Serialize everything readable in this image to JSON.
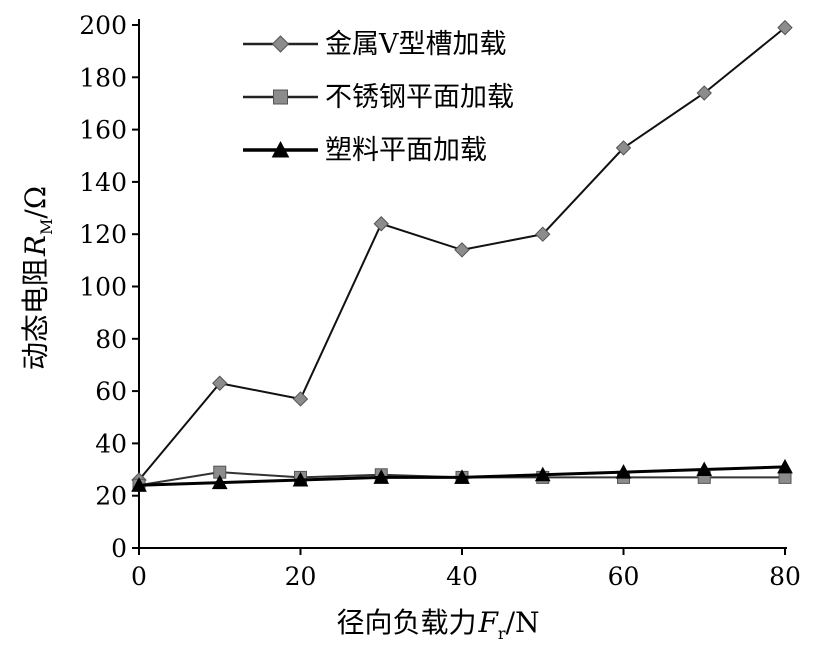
{
  "chart_data": {
    "type": "line",
    "title": "",
    "xlabel": "径向负载力",
    "xlabel_symbol": "F",
    "xlabel_sub": "r",
    "xlabel_unit": "/N",
    "ylabel": "动态电阻",
    "ylabel_symbol": "R",
    "ylabel_sub": "M",
    "ylabel_unit": "/Ω",
    "xlim": [
      0,
      80
    ],
    "ylim": [
      0,
      200
    ],
    "xticks": [
      0,
      20,
      40,
      60,
      80
    ],
    "yticks": [
      0,
      20,
      40,
      60,
      80,
      100,
      120,
      140,
      160,
      180,
      200
    ],
    "grid": false,
    "legend_position": "top-right",
    "x": [
      0,
      10,
      20,
      30,
      40,
      50,
      60,
      70,
      80
    ],
    "series": [
      {
        "name": "金属V型槽加载",
        "marker": "diamond",
        "color": "#8c8c8c",
        "values": [
          26,
          63,
          57,
          124,
          114,
          120,
          153,
          174,
          199
        ]
      },
      {
        "name": "不锈钢平面加载",
        "marker": "square",
        "color": "#8c8c8c",
        "values": [
          24,
          29,
          27,
          28,
          27,
          27,
          27,
          27,
          27
        ]
      },
      {
        "name": "塑料平面加载",
        "marker": "triangle",
        "color": "#000000",
        "values": [
          24,
          25,
          26,
          27,
          27,
          28,
          29,
          30,
          31
        ]
      }
    ]
  }
}
